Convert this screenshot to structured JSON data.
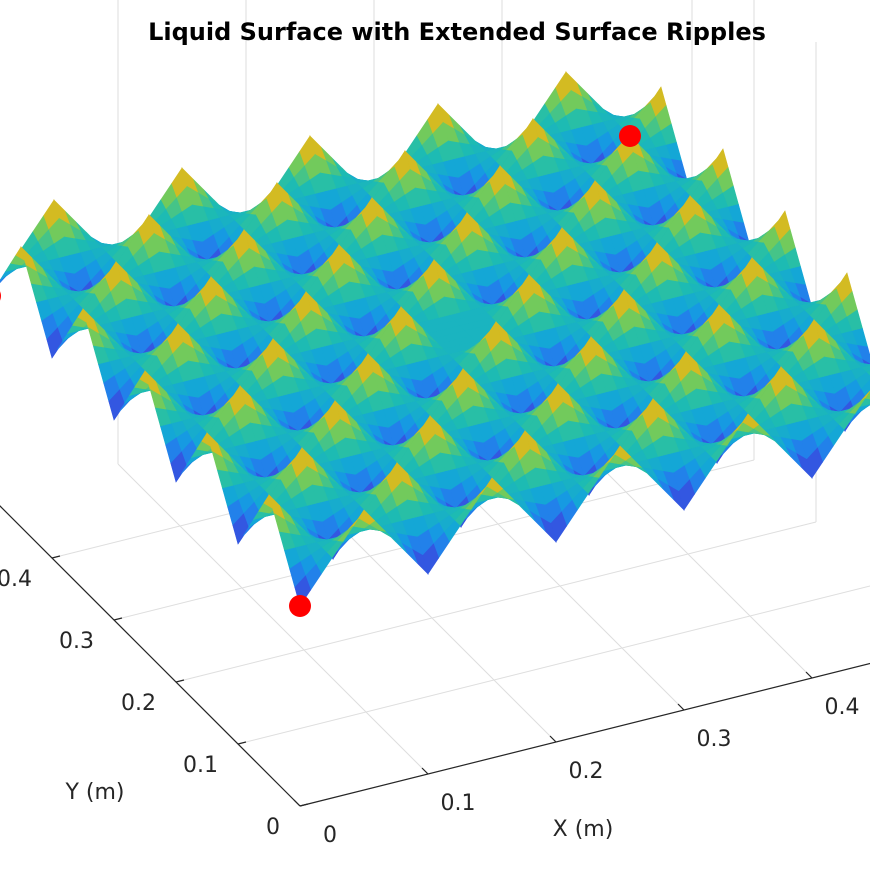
{
  "chart_data": {
    "type": "surface",
    "title": "Liquid Surface with Extended Surface Ripples",
    "x_label": "X (m)",
    "y_label": "Y (m)",
    "xlim": [
      0,
      0.5
    ],
    "ylim": [
      0,
      0.5
    ],
    "zlim": [
      -0.06,
      0.06
    ],
    "xticks": [
      0,
      0.1,
      0.2,
      0.3,
      0.4
    ],
    "yticks": [
      0,
      0.1,
      0.2,
      0.3,
      0.4
    ],
    "grid": true,
    "colormap": "parula",
    "x": [
      0,
      0.025,
      0.05,
      0.075,
      0.1,
      0.125,
      0.15,
      0.175,
      0.2,
      0.225,
      0.25,
      0.275,
      0.3,
      0.325,
      0.35,
      0.375,
      0.4,
      0.425,
      0.45,
      0.475,
      0.5
    ],
    "y": [
      0,
      0.025,
      0.05,
      0.075,
      0.1,
      0.125,
      0.15,
      0.175,
      0.2,
      0.225,
      0.25,
      0.275,
      0.3,
      0.325,
      0.35,
      0.375,
      0.4,
      0.425,
      0.45,
      0.475,
      0.5
    ],
    "z": [
      [
        -0.01,
        0,
        0.01,
        0,
        -0.01,
        0,
        0.01,
        0,
        -0.01,
        0,
        0.01,
        0,
        -0.01,
        0,
        0.01,
        0,
        -0.01,
        0,
        0.01,
        0,
        -0.01
      ],
      [
        0,
        0,
        0,
        0,
        0,
        0,
        0,
        0,
        0,
        0,
        0,
        0,
        0,
        0,
        0,
        0,
        0,
        0,
        0,
        0,
        0
      ],
      [
        0.01,
        0,
        -0.01,
        0,
        0.01,
        0,
        -0.01,
        0,
        0.01,
        0,
        -0.01,
        0,
        0.01,
        0,
        -0.01,
        0,
        0.01,
        0,
        -0.01,
        0,
        0.01
      ],
      [
        0,
        0,
        0,
        0,
        0,
        0,
        0,
        0,
        0,
        0,
        0,
        0,
        0,
        0,
        0,
        0,
        0,
        0,
        0,
        0,
        0
      ],
      [
        -0.01,
        0,
        0.01,
        0,
        -0.01,
        0,
        0.01,
        0,
        -0.01,
        0,
        0.01,
        0,
        -0.01,
        0,
        0.01,
        0,
        -0.01,
        0,
        0.01,
        0,
        -0.01
      ],
      [
        0,
        0,
        0,
        0,
        0,
        0,
        0,
        0,
        0,
        0,
        0,
        0,
        0,
        0,
        0,
        0,
        0,
        0,
        0,
        0,
        0
      ],
      [
        0.01,
        0,
        -0.01,
        0,
        0.01,
        0,
        -0.01,
        0,
        0.01,
        0,
        -0.01,
        0,
        0.01,
        0,
        -0.01,
        0,
        0.01,
        0,
        -0.01,
        0,
        0.01
      ],
      [
        0,
        0,
        0,
        0,
        0,
        0,
        0,
        0,
        0,
        0,
        0,
        0,
        0,
        0,
        0,
        0,
        0,
        0,
        0,
        0,
        0
      ],
      [
        -0.01,
        0,
        0.01,
        0,
        -0.01,
        0,
        0.01,
        0,
        -0.01,
        0,
        0.01,
        0,
        -0.01,
        0,
        0.01,
        0,
        -0.01,
        0,
        0.01,
        0,
        -0.01
      ],
      [
        0,
        0,
        0,
        0,
        0,
        0,
        0,
        0,
        0,
        0,
        0,
        0,
        0,
        0,
        0,
        0,
        0,
        0,
        0,
        0,
        0
      ],
      [
        0.01,
        0,
        -0.01,
        0,
        0.01,
        0,
        -0.01,
        0,
        0.01,
        0,
        0,
        0,
        0.01,
        0,
        -0.01,
        0,
        0.01,
        0,
        -0.01,
        0,
        0.01
      ],
      [
        0,
        0,
        0,
        0,
        0,
        0,
        0,
        0,
        0,
        0,
        0,
        0,
        0,
        0,
        0,
        0,
        0,
        0,
        0,
        0,
        0
      ],
      [
        -0.01,
        0,
        0.01,
        0,
        -0.01,
        0,
        0.01,
        0,
        -0.01,
        0,
        0.01,
        0,
        -0.01,
        0,
        0.01,
        0,
        -0.01,
        0,
        0.01,
        0,
        -0.01
      ],
      [
        0,
        0,
        0,
        0,
        0,
        0,
        0,
        0,
        0,
        0,
        0,
        0,
        0,
        0,
        0,
        0,
        0,
        0,
        0,
        0,
        0
      ],
      [
        0.01,
        0,
        -0.01,
        0,
        0.01,
        0,
        -0.01,
        0,
        0.01,
        0,
        -0.01,
        0,
        0.01,
        0,
        -0.01,
        0,
        0.01,
        0,
        -0.01,
        0,
        0.01
      ],
      [
        0,
        0,
        0,
        0,
        0,
        0,
        0,
        0,
        0,
        0,
        0,
        0,
        0,
        0,
        0,
        0,
        0,
        0,
        0,
        0,
        0
      ],
      [
        -0.01,
        0,
        0.01,
        0,
        -0.01,
        0,
        0.01,
        0,
        -0.01,
        0,
        0.01,
        0,
        -0.01,
        0,
        0.01,
        0,
        -0.01,
        0,
        0.01,
        0,
        -0.01
      ],
      [
        0,
        0,
        0,
        0,
        0,
        0,
        0,
        0,
        0,
        0,
        0,
        0,
        0,
        0,
        0,
        0,
        0,
        0,
        0,
        0,
        0
      ],
      [
        0.01,
        0,
        -0.01,
        0,
        0.01,
        0,
        -0.01,
        0,
        0.01,
        0,
        -0.01,
        0,
        0.01,
        0,
        -0.01,
        0,
        0.01,
        0,
        -0.01,
        0,
        0.01
      ],
      [
        0,
        0,
        0,
        0,
        0,
        0,
        0,
        0,
        0,
        0,
        0,
        0,
        0,
        0,
        0,
        0,
        0,
        0,
        0,
        0,
        0
      ],
      [
        -0.01,
        0,
        0.01,
        0,
        -0.01,
        0,
        0.01,
        0,
        -0.01,
        0,
        0.01,
        0,
        -0.01,
        0,
        0.01,
        0,
        -0.01,
        0,
        0.01,
        0,
        -0.01
      ]
    ],
    "markers": {
      "x": [
        0,
        0,
        0.5
      ],
      "y": [
        0,
        0.5,
        0.5
      ],
      "z": [
        -0.01,
        -0.01,
        -0.01
      ],
      "color": "#ff0000"
    }
  }
}
